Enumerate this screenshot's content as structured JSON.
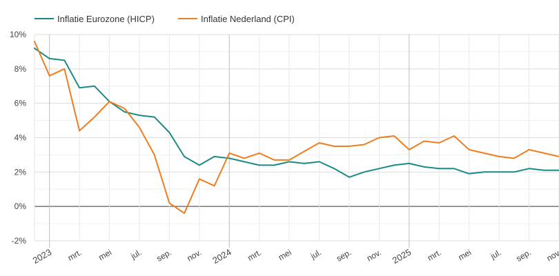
{
  "chart_data": {
    "type": "line",
    "title": "",
    "xlabel": "",
    "ylabel": "",
    "ylim": [
      -2,
      10
    ],
    "yticks": [
      "-2%",
      "0%",
      "2%",
      "4%",
      "6%",
      "8%",
      "10%"
    ],
    "ytick_values": [
      -2,
      0,
      2,
      4,
      6,
      8,
      10
    ],
    "xtick_labels": [
      {
        "label": "2023",
        "month": "2023-01",
        "major": true
      },
      {
        "label": "mrt.",
        "month": "2023-03",
        "major": false
      },
      {
        "label": "mei",
        "month": "2023-05",
        "major": false
      },
      {
        "label": "jul.",
        "month": "2023-07",
        "major": false
      },
      {
        "label": "sep.",
        "month": "2023-09",
        "major": false
      },
      {
        "label": "nov.",
        "month": "2023-11",
        "major": false
      },
      {
        "label": "2024",
        "month": "2024-01",
        "major": true
      },
      {
        "label": "mrt.",
        "month": "2024-03",
        "major": false
      },
      {
        "label": "mei",
        "month": "2024-05",
        "major": false
      },
      {
        "label": "jul.",
        "month": "2024-07",
        "major": false
      },
      {
        "label": "sep.",
        "month": "2024-09",
        "major": false
      },
      {
        "label": "nov.",
        "month": "2024-11",
        "major": false
      },
      {
        "label": "2025",
        "month": "2025-01",
        "major": true
      },
      {
        "label": "mrt.",
        "month": "2025-03",
        "major": false
      },
      {
        "label": "mei",
        "month": "2025-05",
        "major": false
      },
      {
        "label": "jul.",
        "month": "2025-07",
        "major": false
      },
      {
        "label": "sep.",
        "month": "2025-09",
        "major": false
      },
      {
        "label": "nov.",
        "month": "2025-11",
        "major": false
      }
    ],
    "x": [
      "2022-12",
      "2023-01",
      "2023-02",
      "2023-03",
      "2023-04",
      "2023-05",
      "2023-06",
      "2023-07",
      "2023-08",
      "2023-09",
      "2023-10",
      "2023-11",
      "2023-12",
      "2024-01",
      "2024-02",
      "2024-03",
      "2024-04",
      "2024-05",
      "2024-06",
      "2024-07",
      "2024-08",
      "2024-09",
      "2024-10",
      "2024-11",
      "2024-12",
      "2025-01",
      "2025-02",
      "2025-03",
      "2025-04",
      "2025-05",
      "2025-06",
      "2025-07",
      "2025-08",
      "2025-09",
      "2025-10",
      "2025-11"
    ],
    "series": [
      {
        "name": "Inflatie Eurozone (HICP)",
        "color": "#1a8a84",
        "values": [
          9.2,
          8.6,
          8.5,
          6.9,
          7.0,
          6.1,
          5.5,
          5.3,
          5.2,
          4.3,
          2.9,
          2.4,
          2.9,
          2.8,
          2.6,
          2.4,
          2.4,
          2.6,
          2.5,
          2.6,
          2.2,
          1.7,
          2.0,
          2.2,
          2.4,
          2.5,
          2.3,
          2.2,
          2.2,
          1.9,
          2.0,
          2.0,
          2.0,
          2.2,
          2.1,
          2.1
        ]
      },
      {
        "name": "Inflatie Nederland (CPI)",
        "color": "#ee7d1e",
        "values": [
          9.6,
          7.6,
          8.0,
          4.4,
          5.2,
          6.1,
          5.7,
          4.6,
          3.0,
          0.2,
          -0.4,
          1.6,
          1.2,
          3.1,
          2.8,
          3.1,
          2.7,
          2.7,
          3.2,
          3.7,
          3.5,
          3.5,
          3.6,
          4.0,
          4.1,
          3.3,
          3.8,
          3.7,
          4.1,
          3.3,
          3.1,
          2.9,
          2.8,
          3.3,
          3.1,
          2.9
        ]
      }
    ],
    "legend_position": "top-left",
    "grid": true
  }
}
